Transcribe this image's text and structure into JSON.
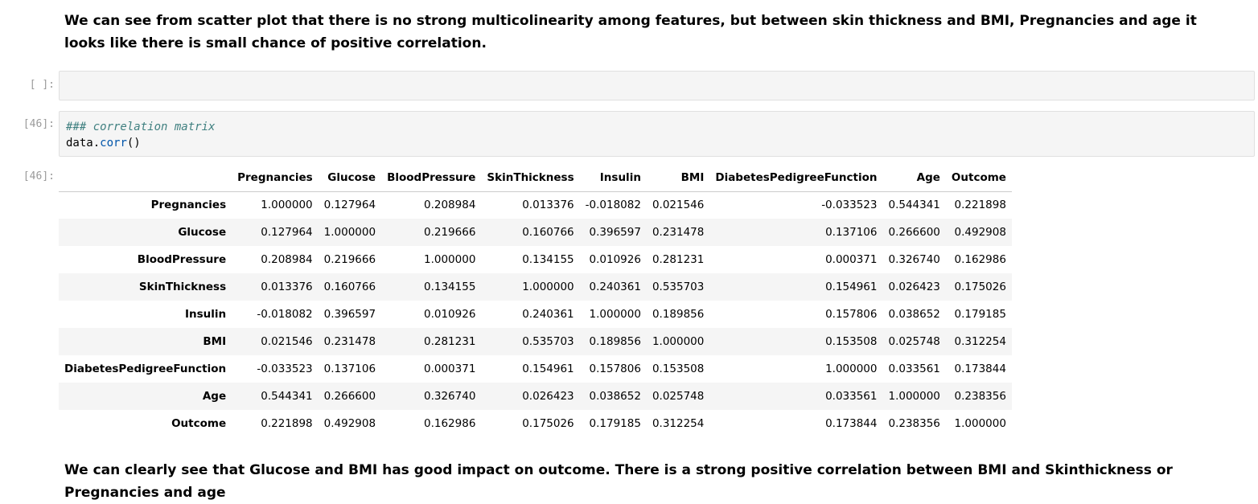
{
  "markdown_top": "We can see from scatter plot that there is no strong multicolinearity among features, but between skin thickness and BMI, Pregnancies and age it looks like there is small chance of positive correlation.",
  "empty_cell": {
    "prompt": "[ ]:"
  },
  "code_cell": {
    "prompt": "[46]:",
    "comment": "### correlation matrix",
    "code_obj": "data.",
    "code_fn": "corr",
    "code_parens": "()"
  },
  "output": {
    "prompt": "[46]:",
    "columns": [
      "Pregnancies",
      "Glucose",
      "BloodPressure",
      "SkinThickness",
      "Insulin",
      "BMI",
      "DiabetesPedigreeFunction",
      "Age",
      "Outcome"
    ],
    "rows": [
      {
        "index": "Pregnancies",
        "values": [
          "1.000000",
          "0.127964",
          "0.208984",
          "0.013376",
          "-0.018082",
          "0.021546",
          "-0.033523",
          "0.544341",
          "0.221898"
        ]
      },
      {
        "index": "Glucose",
        "values": [
          "0.127964",
          "1.000000",
          "0.219666",
          "0.160766",
          "0.396597",
          "0.231478",
          "0.137106",
          "0.266600",
          "0.492908"
        ]
      },
      {
        "index": "BloodPressure",
        "values": [
          "0.208984",
          "0.219666",
          "1.000000",
          "0.134155",
          "0.010926",
          "0.281231",
          "0.000371",
          "0.326740",
          "0.162986"
        ]
      },
      {
        "index": "SkinThickness",
        "values": [
          "0.013376",
          "0.160766",
          "0.134155",
          "1.000000",
          "0.240361",
          "0.535703",
          "0.154961",
          "0.026423",
          "0.175026"
        ]
      },
      {
        "index": "Insulin",
        "values": [
          "-0.018082",
          "0.396597",
          "0.010926",
          "0.240361",
          "1.000000",
          "0.189856",
          "0.157806",
          "0.038652",
          "0.179185"
        ]
      },
      {
        "index": "BMI",
        "values": [
          "0.021546",
          "0.231478",
          "0.281231",
          "0.535703",
          "0.189856",
          "1.000000",
          "0.153508",
          "0.025748",
          "0.312254"
        ]
      },
      {
        "index": "DiabetesPedigreeFunction",
        "values": [
          "-0.033523",
          "0.137106",
          "0.000371",
          "0.154961",
          "0.157806",
          "0.153508",
          "1.000000",
          "0.033561",
          "0.173844"
        ]
      },
      {
        "index": "Age",
        "values": [
          "0.544341",
          "0.266600",
          "0.326740",
          "0.026423",
          "0.038652",
          "0.025748",
          "0.033561",
          "1.000000",
          "0.238356"
        ]
      },
      {
        "index": "Outcome",
        "values": [
          "0.221898",
          "0.492908",
          "0.162986",
          "0.175026",
          "0.179185",
          "0.312254",
          "0.173844",
          "0.238356",
          "1.000000"
        ]
      }
    ]
  },
  "markdown_bottom": "We can clearly see that Glucose and BMI has good impact on outcome. There is a strong positive correlation between BMI and Skinthickness or Pregnancies and age"
}
